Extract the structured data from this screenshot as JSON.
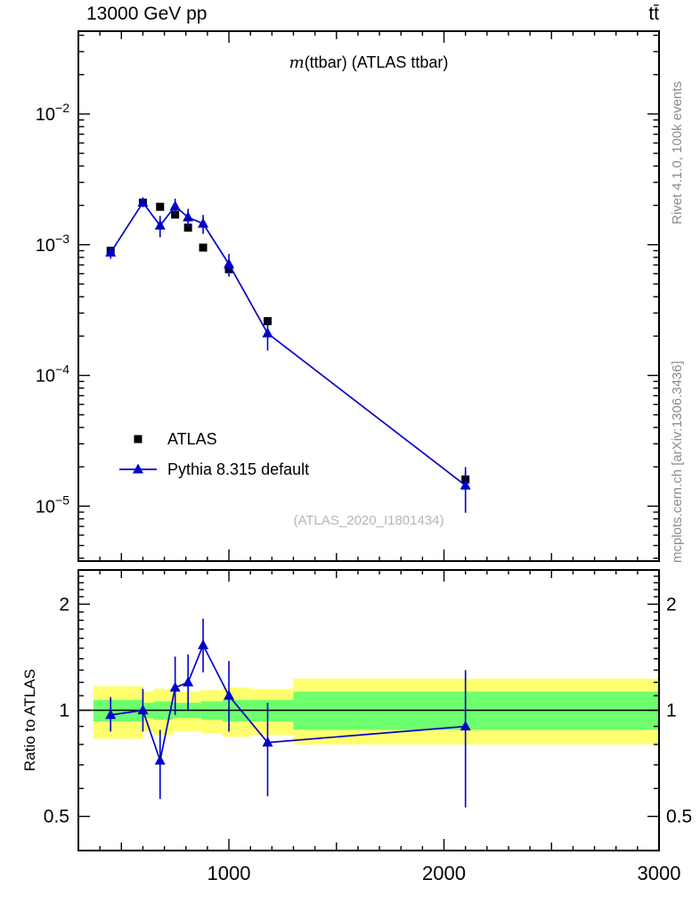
{
  "header": {
    "left": "13000 GeV pp",
    "right": "tt̄"
  },
  "right_margin": {
    "top_label": "Rivet 4.1.0, 100k events",
    "bottom_label": "mcplots.cern.ch [arXiv:1306.3436]"
  },
  "main_panel": {
    "title_observable": "m",
    "title_rest": "(ttbar) (ATLAS ttbar)",
    "watermark": "(ATLAS_2020_I1801434)"
  },
  "ratio_panel": {
    "ylabel": "Ratio to ATLAS"
  },
  "colors": {
    "data": "#000000",
    "mc": "#0000cc",
    "band_outer": "#ffff6e",
    "band_inner": "#6eff6e"
  },
  "chart_data": {
    "type": "line",
    "title": "m(ttbar) (ATLAS ttbar)",
    "xlabel": "",
    "ylabel": "",
    "x_scale": "linear",
    "xlim": [
      300,
      3000
    ],
    "x_major_ticks": [
      1000,
      2000,
      3000
    ],
    "x_minor_step": 100,
    "x": [
      450,
      600,
      680,
      750,
      810,
      880,
      1000,
      1180,
      2100
    ],
    "main": {
      "y_scale": "log",
      "ylim": [
        3.8e-06,
        0.043
      ],
      "y_major_exponents": [
        -2,
        -3,
        -4,
        -5
      ],
      "series": [
        {
          "name": "ATLAS",
          "marker": "square",
          "values": [
            0.0009,
            0.0021,
            0.00195,
            0.0017,
            0.00135,
            0.00095,
            0.00065,
            0.00026,
            1.6e-05
          ],
          "err": [
            4.5e-05,
            8e-05,
            8e-05,
            7e-05,
            5.5e-05,
            5e-05,
            3.5e-05,
            2e-05,
            2e-06
          ]
        },
        {
          "name": "Pythia 8.315 default",
          "marker": "triangle",
          "values": [
            0.00087,
            0.0021,
            0.0014,
            0.00197,
            0.00162,
            0.00145,
            0.00071,
            0.00021,
            1.44e-05
          ],
          "err_lo": [
            9e-05,
            0.00016,
            0.00026,
            0.00028,
            0.00026,
            0.00024,
            0.00014,
            5.5e-05,
            5.5e-06
          ],
          "err_hi": [
            9e-05,
            0.00016,
            0.00026,
            0.00028,
            0.00026,
            0.00024,
            0.00014,
            5.5e-05,
            5.5e-06
          ]
        }
      ]
    },
    "ratio": {
      "y_scale": "log",
      "ylim": [
        0.4,
        2.5
      ],
      "y_ticks": [
        2,
        1,
        0.5
      ],
      "values": [
        0.97,
        1.0,
        0.72,
        1.16,
        1.2,
        1.53,
        1.1,
        0.81,
        0.9
      ],
      "err_lo": [
        0.1,
        0.13,
        0.16,
        0.19,
        0.2,
        0.25,
        0.23,
        0.24,
        0.37
      ],
      "err_hi": [
        0.12,
        0.15,
        0.16,
        0.26,
        0.24,
        0.29,
        0.28,
        0.24,
        0.4
      ],
      "bands": [
        {
          "x0": 370,
          "x1": 600,
          "outer": [
            0.83,
            1.17
          ],
          "inner": [
            0.93,
            1.07
          ]
        },
        {
          "x0": 600,
          "x1": 650,
          "outer": [
            0.87,
            1.13
          ],
          "inner": [
            0.95,
            1.05
          ]
        },
        {
          "x0": 650,
          "x1": 740,
          "outer": [
            0.85,
            1.15
          ],
          "inner": [
            0.94,
            1.06
          ]
        },
        {
          "x0": 740,
          "x1": 870,
          "outer": [
            0.87,
            1.13
          ],
          "inner": [
            0.95,
            1.05
          ]
        },
        {
          "x0": 870,
          "x1": 970,
          "outer": [
            0.86,
            1.14
          ],
          "inner": [
            0.94,
            1.06
          ]
        },
        {
          "x0": 970,
          "x1": 1100,
          "outer": [
            0.84,
            1.16
          ],
          "inner": [
            0.93,
            1.07
          ]
        },
        {
          "x0": 1100,
          "x1": 1300,
          "outer": [
            0.85,
            1.15
          ],
          "inner": [
            0.93,
            1.07
          ]
        },
        {
          "x0": 1300,
          "x1": 3000,
          "outer": [
            0.8,
            1.23
          ],
          "inner": [
            0.88,
            1.13
          ]
        }
      ]
    }
  }
}
